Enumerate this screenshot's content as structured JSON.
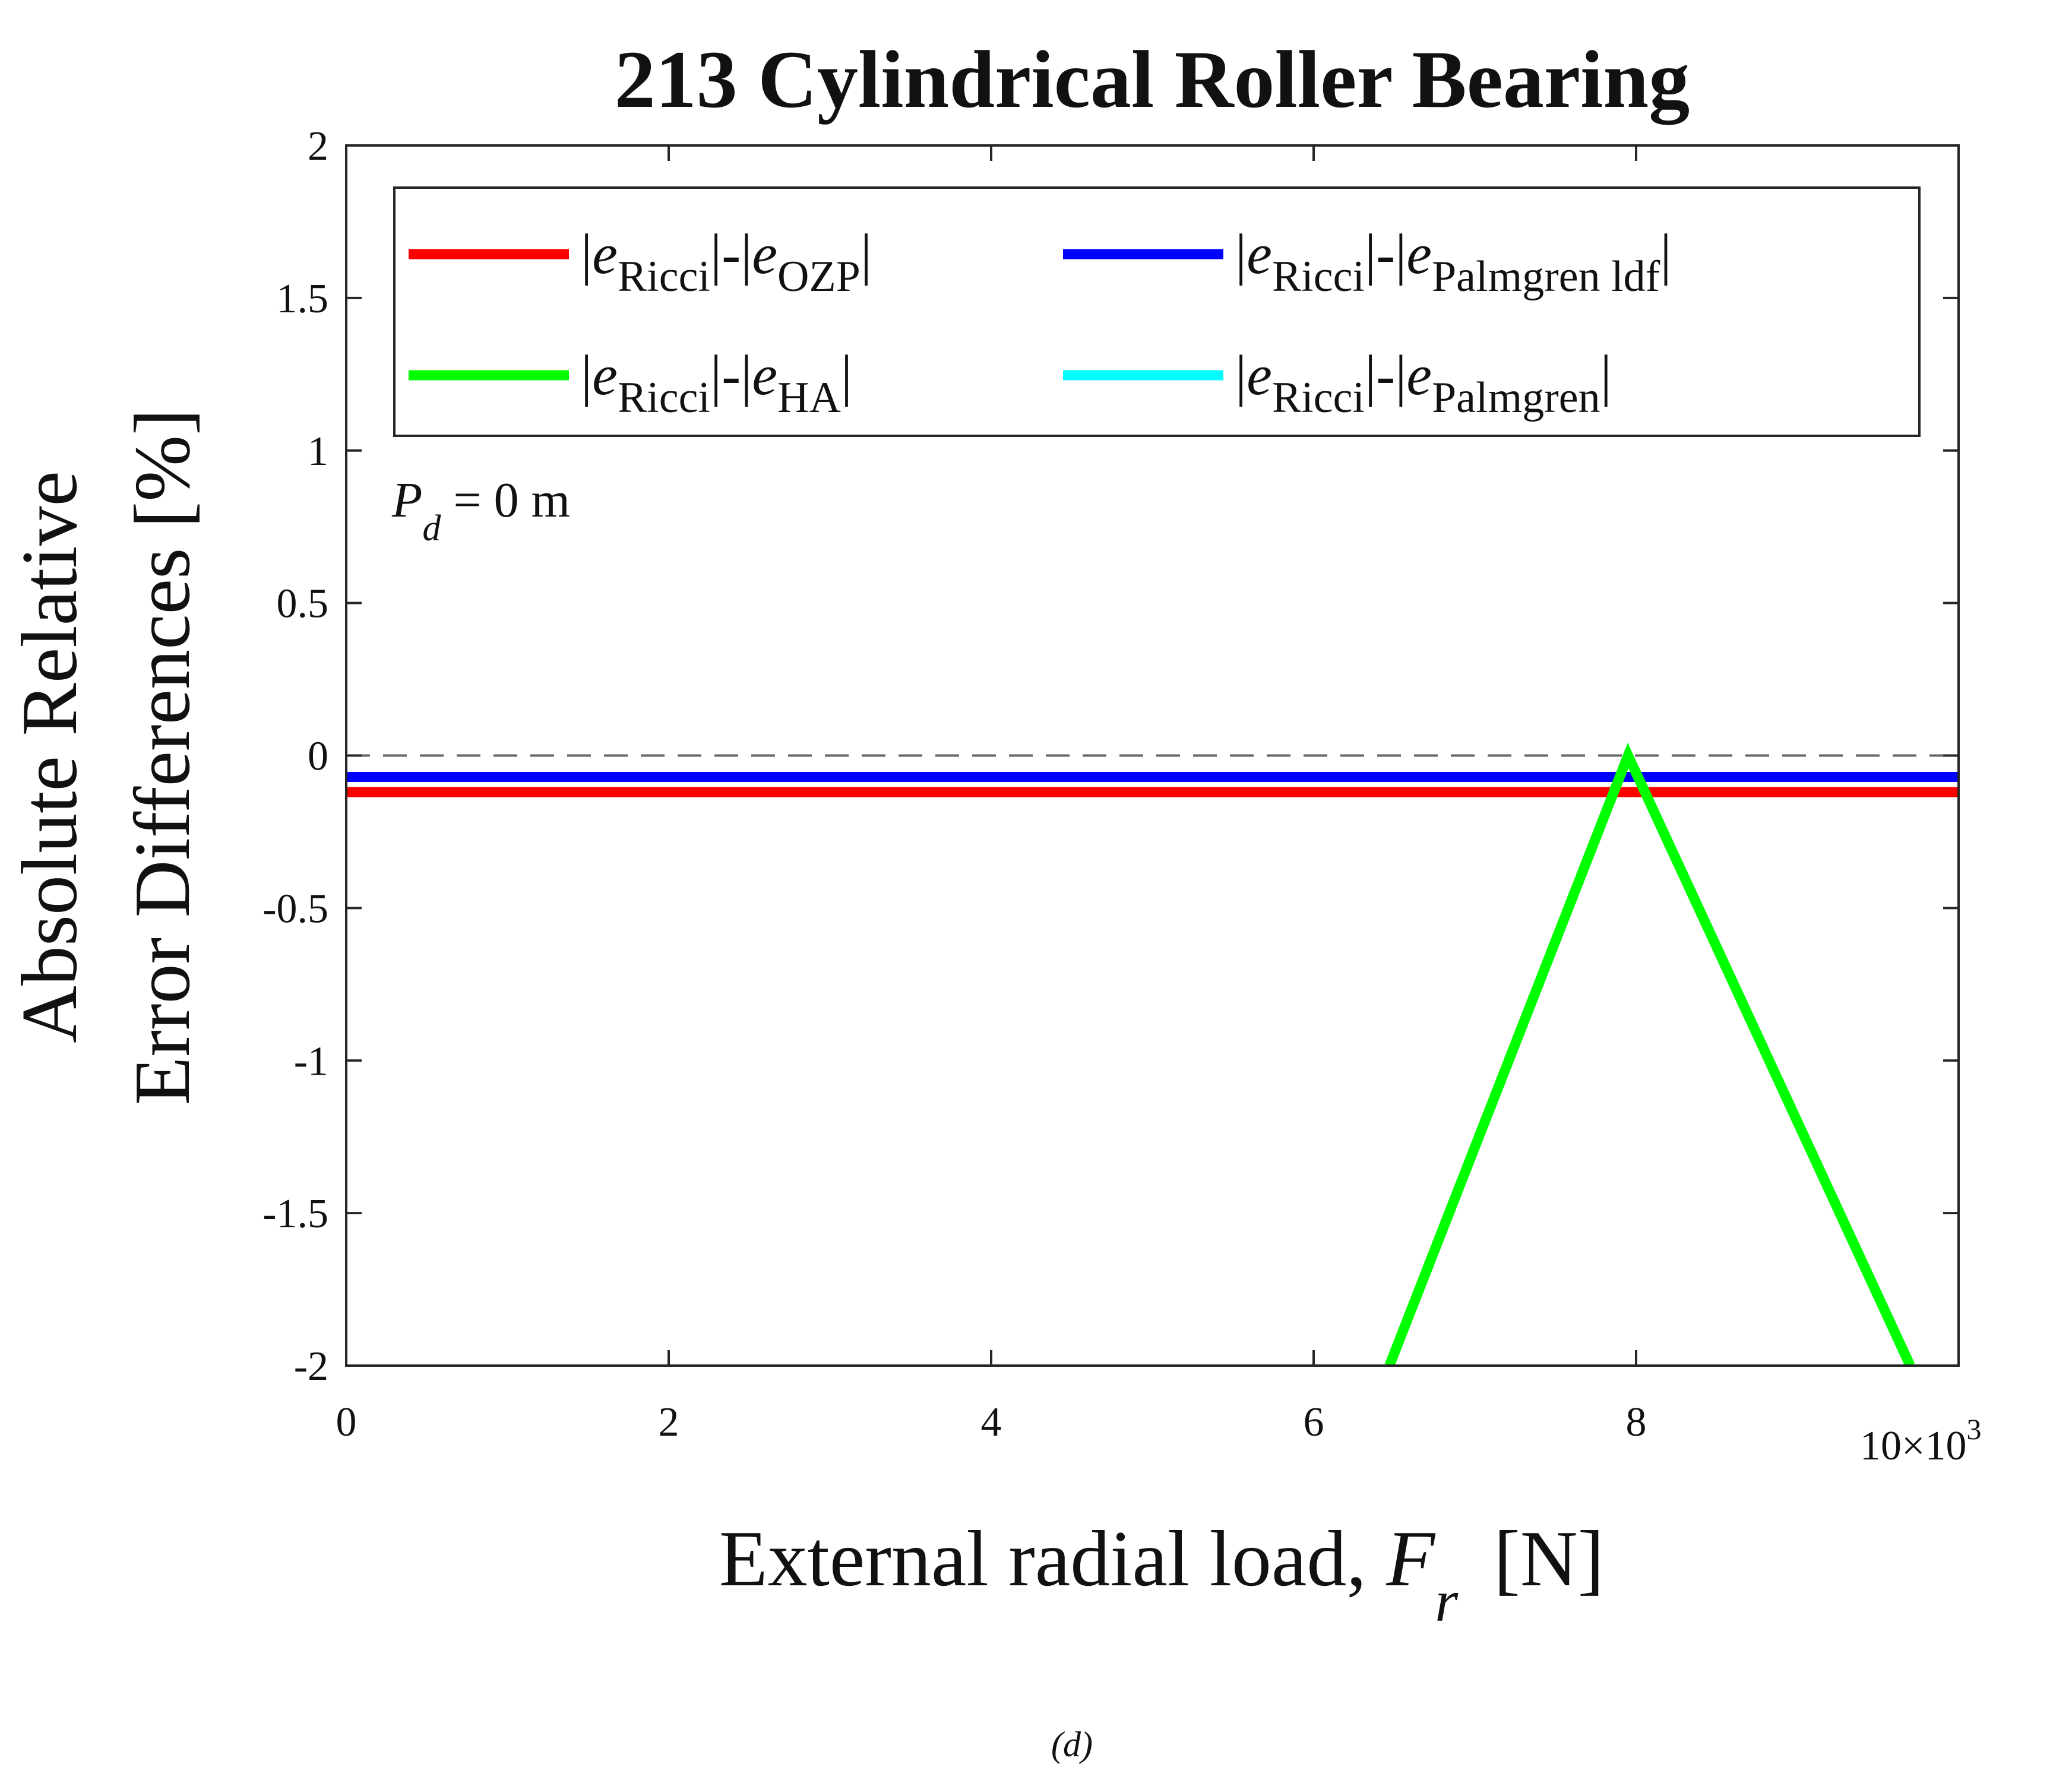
{
  "chart_data": {
    "type": "line",
    "title": "213 Cylindrical Roller Bearing",
    "xlabel": {
      "text": "External radial load, ",
      "var": "F",
      "sub": "r",
      "unit": "[N]"
    },
    "ylabel": {
      "line1": "Absolute Relative",
      "line2": "Error Differences  [%]"
    },
    "x_scale_label": "10×10",
    "x_scale_exp": "3",
    "xlim": [
      0,
      10
    ],
    "ylim": [
      -2,
      2
    ],
    "xticks": [
      "0",
      "2",
      "4",
      "6",
      "8"
    ],
    "yticks": [
      "2",
      "1.5",
      "1",
      "0.5",
      "0",
      "-0.5",
      "-1",
      "-1.5",
      "-2"
    ],
    "grid": false,
    "legend_placement": "top",
    "annotation": {
      "var": "P",
      "sub": "d",
      "text": " = 0 m"
    },
    "caption": "(d)",
    "reference_line": {
      "y": 0,
      "style": "dashed",
      "color": "#666666"
    },
    "series": [
      {
        "name_main": "e",
        "name_sub1": "Ricci",
        "name_sub2": "OZP",
        "color": "#ff0000",
        "x": [
          0,
          10
        ],
        "y": [
          -0.12,
          -0.12
        ]
      },
      {
        "name_main": "e",
        "name_sub1": "Ricci",
        "name_sub2": "HA",
        "color": "#00ff00",
        "x": [
          6.47,
          7.95,
          9.7
        ],
        "y": [
          -2,
          0,
          -2
        ]
      },
      {
        "name_main": "e",
        "name_sub1": "Ricci",
        "name_sub2": "Palmgren ldf",
        "color": "#0000ff",
        "x": [
          0,
          10
        ],
        "y": [
          -0.07,
          -0.07
        ]
      },
      {
        "name_main": "e",
        "name_sub1": "Ricci",
        "name_sub2": "Palmgren",
        "color": "#00ffff",
        "x": [
          0,
          10
        ],
        "y": [
          -0.07,
          -0.07
        ]
      }
    ]
  }
}
